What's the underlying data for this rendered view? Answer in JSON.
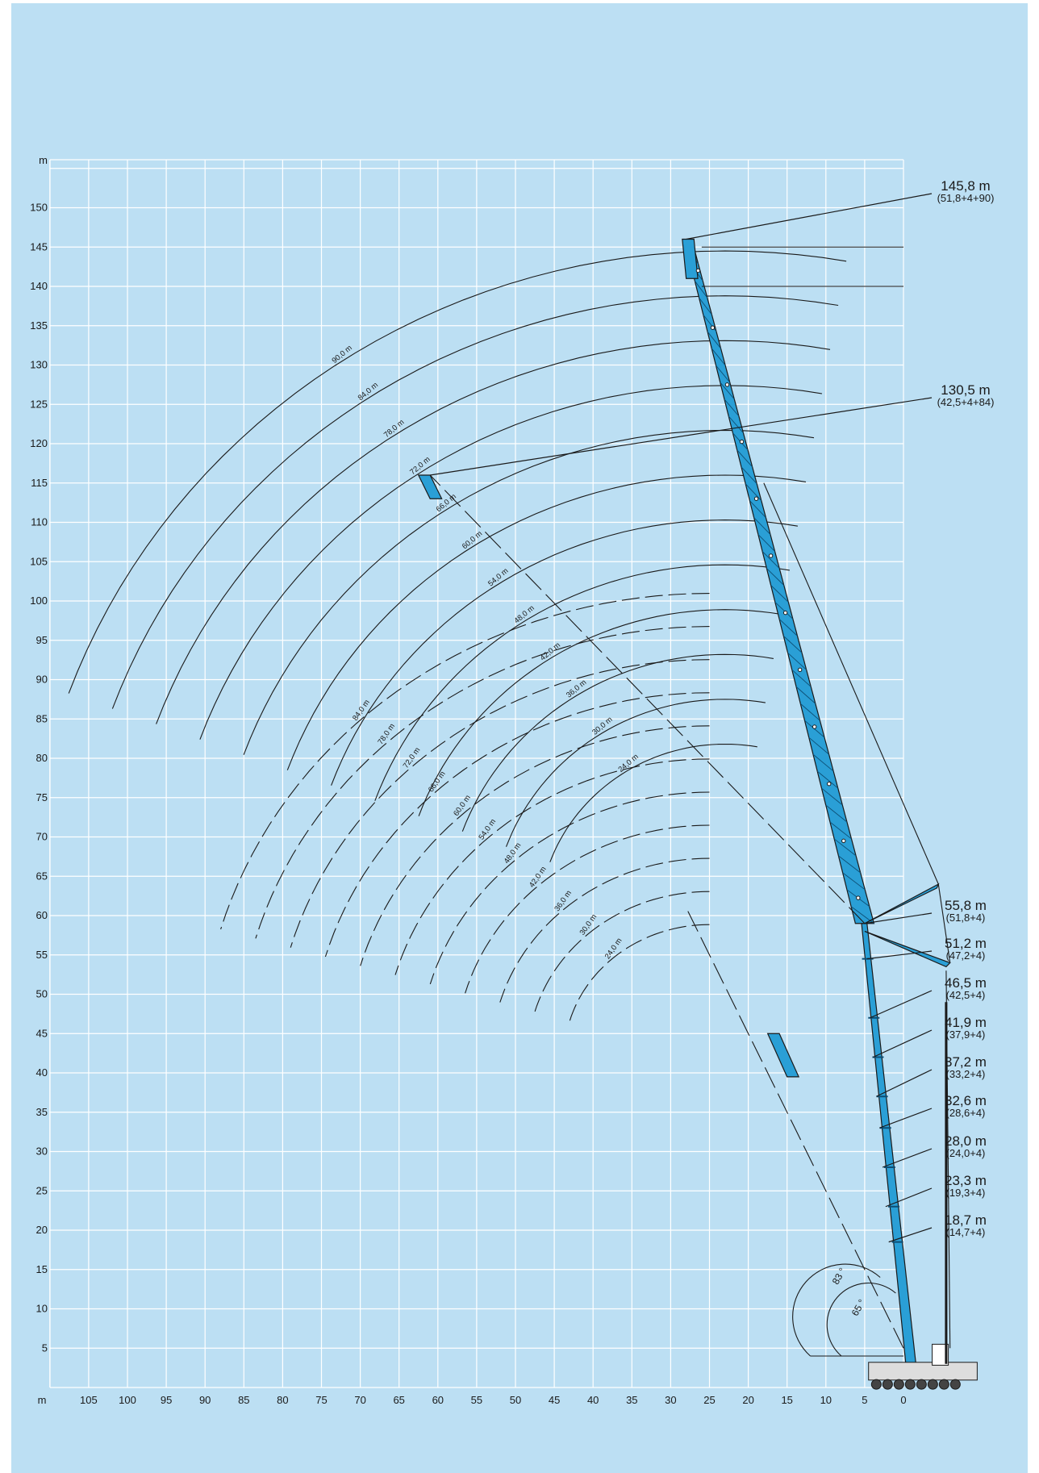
{
  "chart_data": {
    "type": "range_diagram",
    "y_unit": "m",
    "x_unit": "m",
    "y_ticks": [
      5,
      10,
      15,
      20,
      25,
      30,
      35,
      40,
      45,
      50,
      55,
      60,
      65,
      70,
      75,
      80,
      85,
      90,
      95,
      100,
      105,
      110,
      115,
      120,
      125,
      130,
      135,
      140,
      145,
      150
    ],
    "x_ticks": [
      105,
      100,
      95,
      90,
      85,
      80,
      75,
      70,
      65,
      60,
      55,
      50,
      45,
      40,
      35,
      30,
      25,
      20,
      15,
      10,
      5,
      0
    ],
    "ylim": [
      0,
      155
    ],
    "xlim": [
      -110,
      0
    ],
    "grid": true,
    "jib_curves_upper": [
      {
        "label": "90,0 m",
        "radius": 90
      },
      {
        "label": "84,0 m",
        "radius": 84
      },
      {
        "label": "78,0 m",
        "radius": 78
      },
      {
        "label": "72,0 m",
        "radius": 72
      },
      {
        "label": "66,0 m",
        "radius": 66
      },
      {
        "label": "60,0 m",
        "radius": 60
      },
      {
        "label": "54,0 m",
        "radius": 54
      },
      {
        "label": "48,0 m",
        "radius": 48
      },
      {
        "label": "42,0 m",
        "radius": 42
      },
      {
        "label": "36,0 m",
        "radius": 36
      },
      {
        "label": "30,0 m",
        "radius": 30
      },
      {
        "label": "24,0 m",
        "radius": 24
      }
    ],
    "jib_curves_lower": [
      {
        "label": "84,0 m",
        "radius": 84
      },
      {
        "label": "78,0 m",
        "radius": 78
      },
      {
        "label": "72,0 m",
        "radius": 72
      },
      {
        "label": "66,0 m",
        "radius": 66
      },
      {
        "label": "60,0 m",
        "radius": 60
      },
      {
        "label": "54,0 m",
        "radius": 54
      },
      {
        "label": "48,0 m",
        "radius": 48
      },
      {
        "label": "42,0 m",
        "radius": 42
      },
      {
        "label": "36,0 m",
        "radius": 36
      },
      {
        "label": "30,0 m",
        "radius": 30
      },
      {
        "label": "24,0 m",
        "radius": 24
      }
    ],
    "configurations": [
      {
        "height": "145,8 m",
        "combo": "(51,8+4+90)",
        "tip": [
          28,
          146
        ]
      },
      {
        "height": "130,5 m",
        "combo": "(42,5+4+84)",
        "tip": [
          61,
          116
        ]
      },
      {
        "height": "55,8 m",
        "combo": "(51,8+4)",
        "tip": [
          5,
          59
        ]
      },
      {
        "height": "51,2 m",
        "combo": "(47,2+4)",
        "tip": [
          4.7,
          54.5
        ]
      },
      {
        "height": "46,5 m",
        "combo": "(42,5+4)",
        "tip": [
          4.3,
          47
        ]
      },
      {
        "height": "41,9 m",
        "combo": "(37,9+4)",
        "tip": [
          3.9,
          42
        ]
      },
      {
        "height": "37,2 m",
        "combo": "(33,2+4)",
        "tip": [
          3.5,
          37
        ]
      },
      {
        "height": "32,6 m",
        "combo": "(28,6+4)",
        "tip": [
          3.1,
          33
        ]
      },
      {
        "height": "28,0 m",
        "combo": "(24,0+4)",
        "tip": [
          2.7,
          28
        ]
      },
      {
        "height": "23,3 m",
        "combo": "(19,3+4)",
        "tip": [
          2.3,
          23
        ]
      },
      {
        "height": "18,7 m",
        "combo": "(14,7+4)",
        "tip": [
          1.9,
          18.5
        ]
      }
    ],
    "angles": [
      "83 °",
      "65 °"
    ]
  },
  "colors": {
    "background": "#bcdff3",
    "grid": "#ffffff",
    "boom": "#2a9fd6",
    "line": "#1a1a1a"
  }
}
